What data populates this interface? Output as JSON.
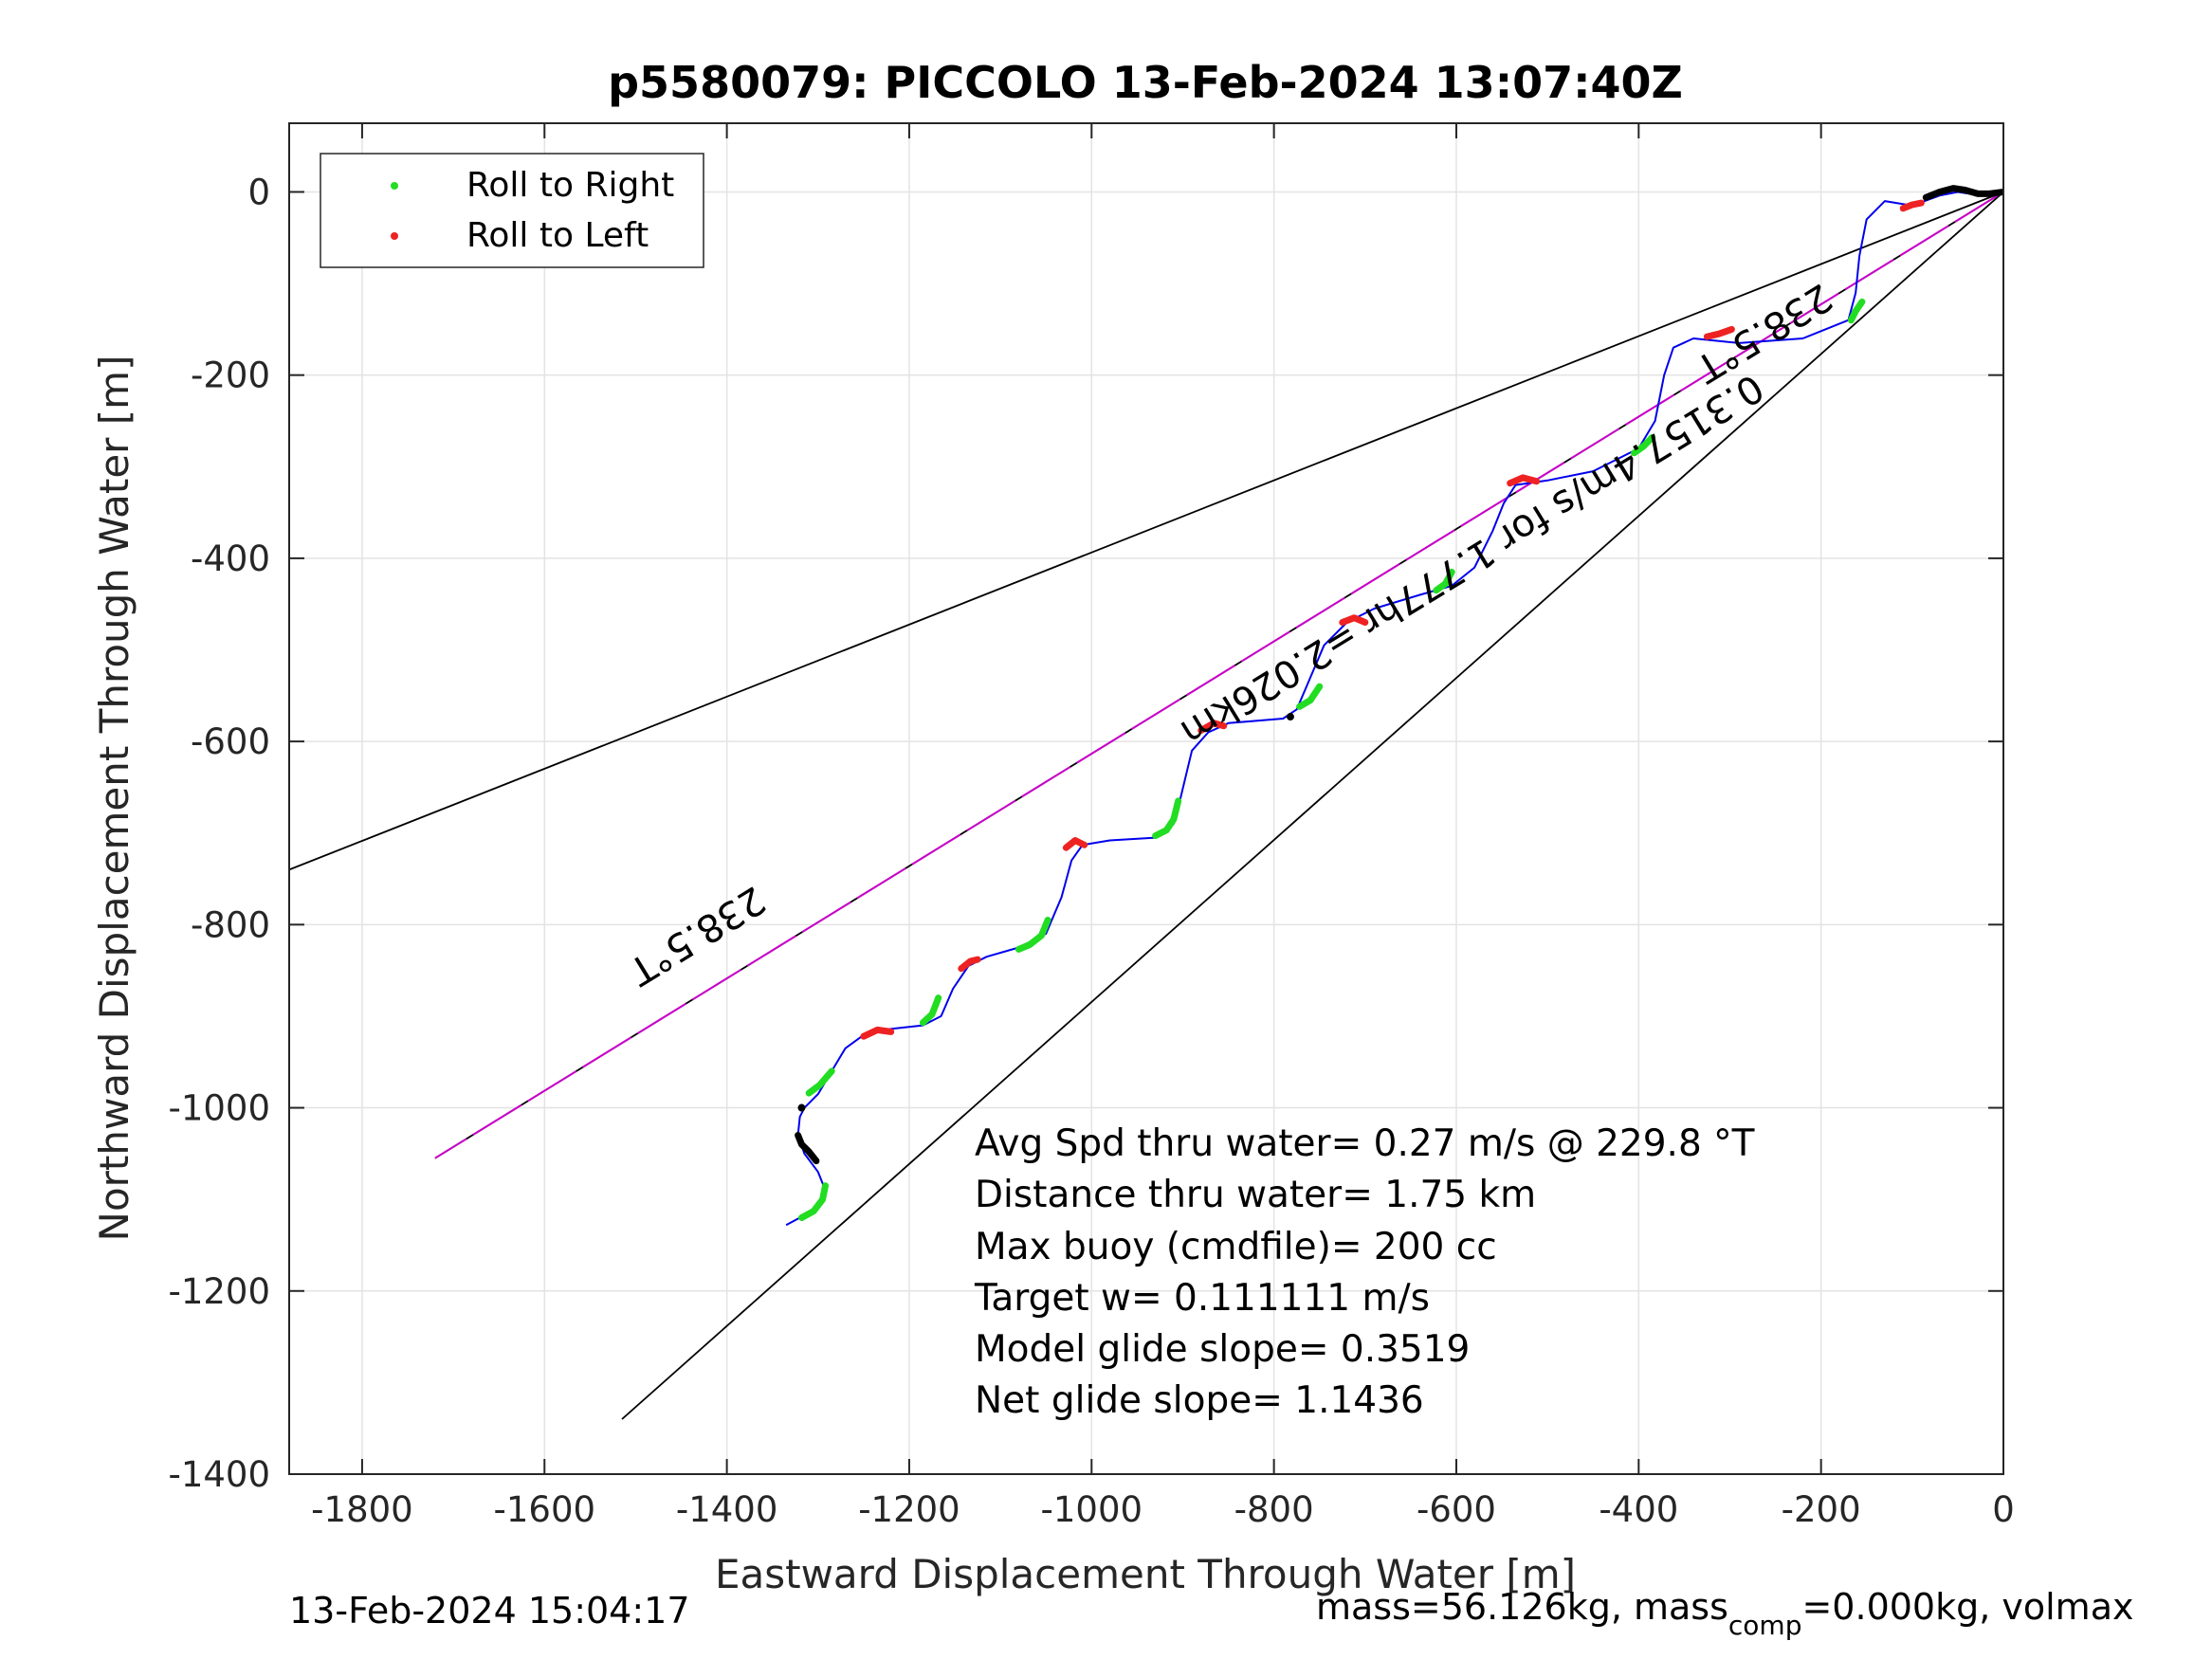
{
  "chart_data": {
    "type": "line",
    "title": "p5580079: PICCOLO 13-Feb-2024 13:07:40Z",
    "xlabel": "Eastward Displacement Through Water [m]",
    "ylabel": "Northward Displacement Through Water [m]",
    "xlim": [
      -1880,
      0
    ],
    "ylim": [
      -1400,
      75
    ],
    "grid": true,
    "xticks": [
      -1800,
      -1600,
      -1400,
      -1200,
      -1000,
      -800,
      -600,
      -400,
      -200,
      0
    ],
    "xtick_labels": [
      "-1800",
      "-1600",
      "-1400",
      "-1200",
      "-1000",
      "-800",
      "-600",
      "-400",
      "-200",
      "0"
    ],
    "yticks": [
      0,
      -200,
      -400,
      -600,
      -800,
      -1000,
      -1200,
      -1400
    ],
    "ytick_labels": [
      "0",
      "-200",
      "-400",
      "-600",
      "-800",
      "-1000",
      "-1200",
      "-1400"
    ],
    "legend": {
      "placement": "top-left",
      "entries": [
        {
          "label": "Roll to Right",
          "color": "#22dd22"
        },
        {
          "label": "Roll to Left",
          "color": "#ee2222"
        }
      ]
    },
    "series": [
      {
        "color": "#0000ee",
        "points": [
          [
            0,
            0
          ],
          [
            -30,
            -3
          ],
          [
            -50,
            0
          ],
          [
            -70,
            -4
          ],
          [
            -100,
            -15
          ],
          [
            -130,
            -10
          ],
          [
            -150,
            -30
          ],
          [
            -158,
            -70
          ],
          [
            -162,
            -110
          ],
          [
            -170,
            -140
          ],
          [
            -220,
            -160
          ],
          [
            -290,
            -165
          ],
          [
            -340,
            -160
          ],
          [
            -362,
            -170
          ],
          [
            -372,
            -200
          ],
          [
            -382,
            -250
          ],
          [
            -400,
            -280
          ],
          [
            -450,
            -305
          ],
          [
            -500,
            -315
          ],
          [
            -535,
            -320
          ],
          [
            -548,
            -340
          ],
          [
            -560,
            -370
          ],
          [
            -580,
            -410
          ],
          [
            -605,
            -430
          ],
          [
            -640,
            -440
          ],
          [
            -690,
            -455
          ],
          [
            -720,
            -470
          ],
          [
            -745,
            -495
          ],
          [
            -760,
            -530
          ],
          [
            -775,
            -565
          ],
          [
            -790,
            -575
          ],
          [
            -850,
            -580
          ],
          [
            -872,
            -590
          ],
          [
            -890,
            -610
          ],
          [
            -902,
            -660
          ],
          [
            -910,
            -690
          ],
          [
            -930,
            -705
          ],
          [
            -980,
            -708
          ],
          [
            -1010,
            -713
          ],
          [
            -1022,
            -730
          ],
          [
            -1033,
            -770
          ],
          [
            -1050,
            -810
          ],
          [
            -1080,
            -825
          ],
          [
            -1115,
            -835
          ],
          [
            -1135,
            -845
          ],
          [
            -1152,
            -870
          ],
          [
            -1165,
            -900
          ],
          [
            -1185,
            -910
          ],
          [
            -1230,
            -915
          ],
          [
            -1252,
            -922
          ],
          [
            -1270,
            -935
          ],
          [
            -1285,
            -960
          ],
          [
            -1300,
            -985
          ],
          [
            -1315,
            -1000
          ],
          [
            -1320,
            -1010
          ],
          [
            -1322,
            -1030
          ],
          [
            -1315,
            -1050
          ],
          [
            -1300,
            -1070
          ],
          [
            -1292,
            -1090
          ],
          [
            -1302,
            -1110
          ],
          [
            -1320,
            -1120
          ],
          [
            -1335,
            -1128
          ]
        ]
      }
    ],
    "roll_right_segments": [
      [
        [
          -155,
          -120
        ],
        [
          -162,
          -130
        ],
        [
          -167,
          -140
        ]
      ],
      [
        [
          -385,
          -268
        ],
        [
          -395,
          -278
        ],
        [
          -405,
          -285
        ]
      ],
      [
        [
          -605,
          -415
        ],
        [
          -612,
          -428
        ],
        [
          -622,
          -435
        ]
      ],
      [
        [
          -750,
          -540
        ],
        [
          -760,
          -555
        ],
        [
          -772,
          -562
        ]
      ],
      [
        [
          -905,
          -665
        ],
        [
          -910,
          -685
        ],
        [
          -918,
          -697
        ],
        [
          -930,
          -703
        ]
      ],
      [
        [
          -1048,
          -795
        ],
        [
          -1055,
          -812
        ],
        [
          -1068,
          -822
        ],
        [
          -1080,
          -827
        ]
      ],
      [
        [
          -1168,
          -880
        ],
        [
          -1175,
          -898
        ],
        [
          -1185,
          -907
        ]
      ],
      [
        [
          -1285,
          -960
        ],
        [
          -1298,
          -975
        ],
        [
          -1310,
          -984
        ]
      ],
      [
        [
          -1292,
          -1085
        ],
        [
          -1295,
          -1100
        ],
        [
          -1305,
          -1113
        ],
        [
          -1318,
          -1120
        ]
      ]
    ],
    "roll_left_segments": [
      [
        [
          -90,
          -12
        ],
        [
          -100,
          -14
        ],
        [
          -110,
          -18
        ]
      ],
      [
        [
          -298,
          -150
        ],
        [
          -312,
          -155
        ],
        [
          -325,
          -158
        ]
      ],
      [
        [
          -512,
          -316
        ],
        [
          -527,
          -312
        ],
        [
          -541,
          -318
        ]
      ],
      [
        [
          -700,
          -470
        ],
        [
          -712,
          -465
        ],
        [
          -725,
          -470
        ]
      ],
      [
        [
          -855,
          -583
        ],
        [
          -866,
          -580
        ],
        [
          -880,
          -588
        ]
      ],
      [
        [
          -1008,
          -713
        ],
        [
          -1018,
          -708
        ],
        [
          -1028,
          -716
        ]
      ],
      [
        [
          -1125,
          -838
        ],
        [
          -1133,
          -840
        ],
        [
          -1143,
          -848
        ]
      ],
      [
        [
          -1220,
          -917
        ],
        [
          -1235,
          -915
        ],
        [
          -1250,
          -922
        ]
      ]
    ],
    "waypoints": [
      {
        "x": -782,
        "y": -573,
        "color": "#000000"
      },
      {
        "x": -1318,
        "y": -1000,
        "color": "#000000"
      }
    ],
    "bold_segments": [
      [
        [
          0,
          0
        ],
        [
          -15,
          -2
        ],
        [
          -28,
          -2
        ],
        [
          -42,
          2
        ],
        [
          -55,
          4
        ],
        [
          -70,
          0
        ],
        [
          -85,
          -6
        ]
      ],
      [
        [
          -1322,
          -1030
        ],
        [
          -1318,
          -1040
        ],
        [
          -1310,
          -1048
        ],
        [
          -1302,
          -1058
        ]
      ]
    ],
    "reference_lines": [
      {
        "color": "#000000",
        "points": [
          [
            0,
            0
          ],
          [
            -1880,
            -740
          ]
        ]
      },
      {
        "color": "#000000",
        "points": [
          [
            0,
            0
          ],
          [
            -1515,
            -1340
          ]
        ]
      },
      {
        "color": "#000000",
        "points": [
          [
            0,
            0
          ],
          [
            -1720,
            -1055
          ]
        ]
      },
      {
        "color": "#cc00cc",
        "points": [
          [
            0,
            0
          ],
          [
            -1720,
            -1055
          ]
        ]
      }
    ],
    "line_labels": [
      {
        "text": "238.5°T",
        "x": -1440,
        "y": -800,
        "rotate": 148.5
      },
      {
        "text": "238.5°T",
        "x": -270,
        "y": -142,
        "rotate": 148.5
      },
      {
        "text": "0.3157.4m/s for 1.777hr =2.026km",
        "x": -590,
        "y": -390,
        "rotate": 148.5
      }
    ],
    "annotations": [
      "Avg Spd thru water=  0.27 m/s @ 229.8 °T",
      "Distance thru water=  1.75 km",
      "Max buoy (cmdfile)= 200 cc",
      "Target w= 0.111111 m/s",
      "Model glide slope= 0.3519",
      "Net glide slope= 1.1436"
    ]
  },
  "footer": {
    "timestamp": "13-Feb-2024 15:04:17",
    "mass_prefix": "mass=56.126kg, mass",
    "mass_sub": "comp",
    "mass_suffix": "=0.000kg, volmax"
  }
}
